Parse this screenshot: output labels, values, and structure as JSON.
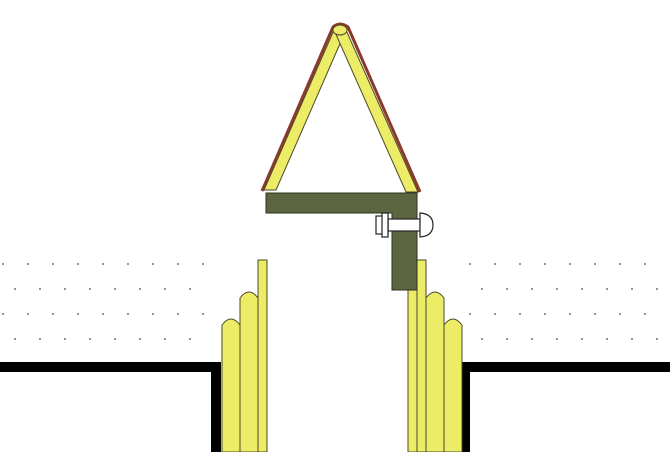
{
  "colors": {
    "background": "#ffffff",
    "strip_fill": "#ecec66",
    "strip_stroke": "#4a4a2a",
    "bracket_fill": "#5b6641",
    "bracket_stroke": "#2b301f",
    "outline_accent": "#8b3a2a",
    "wall_line": "#000000",
    "dots": "#444444",
    "bolt_fill": "#ffffff",
    "bolt_stroke": "#222222"
  },
  "icons": {
    "cap": "triangular-flashing-cap",
    "bracket": "angle-bracket",
    "bolt": "bolt-fastener",
    "layers": "membrane-layers"
  }
}
